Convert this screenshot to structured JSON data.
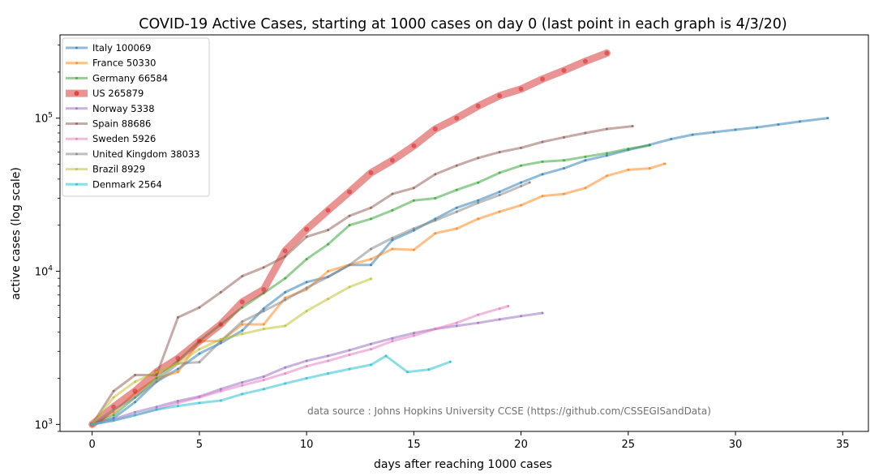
{
  "chart_data": {
    "type": "line",
    "title": "COVID-19 Active Cases, starting at 1000 cases on day 0 (last point in each graph is 4/3/20)",
    "xlabel": "days after reaching 1000 cases",
    "ylabel": "active cases (log scale)",
    "xlim": [
      -1.5,
      36.2
    ],
    "ylim": [
      900,
      350000
    ],
    "yscale": "log",
    "xticks": [
      0,
      5,
      10,
      15,
      20,
      25,
      30,
      35
    ],
    "xtick_labels": [
      "0",
      "5",
      "10",
      "15",
      "20",
      "25",
      "30",
      "35"
    ],
    "yticks": [
      1000,
      10000,
      100000
    ],
    "ytick_labels": [
      {
        "base": "10",
        "exp": "3"
      },
      {
        "base": "10",
        "exp": "4"
      },
      {
        "base": "10",
        "exp": "5"
      }
    ],
    "grid": false,
    "legend_position": "top-left",
    "annotation": "data source : Johns Hopkins University CCSE (https://github.com/CSSEGISandData)",
    "series": [
      {
        "name": "Italy 100069",
        "color": "#1f77b4",
        "width": 3,
        "marker": "dot",
        "x": [
          0,
          1,
          2,
          3,
          4,
          5,
          6,
          7,
          8,
          9,
          10,
          11,
          12,
          13,
          14,
          15,
          16,
          17,
          18,
          19,
          20,
          21,
          22,
          23,
          24,
          25,
          26,
          27,
          28,
          29,
          30,
          31,
          32,
          33,
          34.3
        ],
        "y": [
          1000,
          1100,
          1400,
          1900,
          2300,
          2900,
          3400,
          4100,
          5700,
          7300,
          8500,
          9200,
          11000,
          11000,
          16000,
          18500,
          22000,
          26000,
          29000,
          33000,
          38000,
          43000,
          47000,
          53000,
          57000,
          62000,
          67000,
          73000,
          78000,
          81000,
          84000,
          87000,
          91000,
          95000,
          100069
        ]
      },
      {
        "name": "France 50330",
        "color": "#ff7f0e",
        "width": 3,
        "marker": "dot",
        "x": [
          0,
          1,
          2,
          3,
          4,
          5,
          6,
          7,
          8,
          9,
          10,
          11,
          12,
          13,
          14,
          15,
          16,
          17,
          18,
          19,
          20,
          21,
          22,
          23,
          24,
          25,
          26,
          26.7
        ],
        "y": [
          1000,
          1200,
          1600,
          2000,
          2200,
          3500,
          3500,
          4500,
          4500,
          6700,
          7600,
          10000,
          11000,
          12000,
          14000,
          13800,
          17700,
          19000,
          22000,
          24500,
          27000,
          31000,
          32000,
          35000,
          42000,
          46000,
          47000,
          50330
        ]
      },
      {
        "name": "Germany 66584",
        "color": "#2ca02c",
        "width": 3,
        "marker": "dot",
        "x": [
          0,
          1,
          2,
          3,
          4,
          5,
          6,
          7,
          8,
          9,
          10,
          11,
          12,
          13,
          14,
          15,
          16,
          17,
          18,
          19,
          20,
          21,
          22,
          23,
          24,
          25,
          26
        ],
        "y": [
          1000,
          1150,
          1500,
          2000,
          2600,
          3500,
          4500,
          5800,
          7200,
          9000,
          12000,
          15000,
          20000,
          22000,
          25000,
          29000,
          30000,
          34000,
          38000,
          44000,
          49000,
          52000,
          53000,
          56000,
          59000,
          63000,
          66584
        ]
      },
      {
        "name": "US 265879",
        "color": "#d62728",
        "width": 9,
        "marker": "circle",
        "x": [
          0,
          1,
          2,
          3,
          4,
          5,
          6,
          7,
          8,
          9,
          10,
          11,
          12,
          13,
          14,
          15,
          16,
          17,
          18,
          19,
          20,
          21,
          22,
          23,
          24
        ],
        "y": [
          1000,
          1300,
          1650,
          2200,
          2700,
          3500,
          4500,
          6300,
          7600,
          13600,
          18800,
          25000,
          33000,
          44000,
          53000,
          66000,
          85000,
          100000,
          120000,
          140000,
          155000,
          180000,
          205000,
          235000,
          265879
        ]
      },
      {
        "name": "Norway 5338",
        "color": "#9467bd",
        "width": 3,
        "marker": "dot",
        "x": [
          0,
          1,
          2,
          3,
          4,
          5,
          6,
          7,
          8,
          9,
          10,
          11,
          12,
          13,
          14,
          15,
          16,
          17,
          18,
          19,
          20,
          21
        ],
        "y": [
          1000,
          1080,
          1200,
          1300,
          1420,
          1520,
          1700,
          1880,
          2050,
          2350,
          2600,
          2800,
          3050,
          3350,
          3650,
          3950,
          4200,
          4400,
          4600,
          4850,
          5100,
          5338
        ]
      },
      {
        "name": "Spain 88686",
        "color": "#8c564b",
        "width": 3,
        "marker": "dot",
        "x": [
          0,
          1,
          2,
          3,
          4,
          5,
          6,
          7,
          8,
          9,
          10,
          11,
          12,
          13,
          14,
          15,
          16,
          17,
          18,
          19,
          20,
          21,
          22,
          23,
          24,
          25.2
        ],
        "y": [
          1000,
          1650,
          2100,
          2100,
          5000,
          5800,
          7300,
          9300,
          10600,
          12500,
          16800,
          18600,
          23000,
          26000,
          32000,
          35000,
          43000,
          49000,
          55000,
          60000,
          64000,
          70000,
          75000,
          80000,
          85000,
          88686
        ]
      },
      {
        "name": "Sweden 5926",
        "color": "#e377c2",
        "width": 3,
        "marker": "dot",
        "x": [
          0,
          1,
          2,
          3,
          4,
          5,
          6,
          7,
          8,
          9,
          10,
          11,
          12,
          13,
          14,
          15,
          16,
          17,
          18,
          19,
          19.4
        ],
        "y": [
          1000,
          1060,
          1150,
          1250,
          1380,
          1500,
          1650,
          1800,
          1950,
          2150,
          2400,
          2600,
          2850,
          3100,
          3500,
          3800,
          4200,
          4600,
          5200,
          5700,
          5926
        ]
      },
      {
        "name": "United Kingdom 38033",
        "color": "#7f7f7f",
        "width": 3,
        "marker": "dot",
        "x": [
          0,
          1,
          2,
          3,
          4,
          5,
          6,
          7,
          8,
          9,
          10,
          11,
          12,
          13,
          14,
          15,
          16,
          17,
          18,
          19,
          20,
          20.4
        ],
        "y": [
          1000,
          1250,
          1500,
          1900,
          2500,
          2550,
          3500,
          4700,
          5500,
          6500,
          7800,
          9200,
          11000,
          14000,
          16500,
          19000,
          21500,
          24500,
          28000,
          31500,
          36000,
          38033
        ]
      },
      {
        "name": "Brazil 8929",
        "color": "#bcbd22",
        "width": 3,
        "marker": "dot",
        "x": [
          0,
          1,
          2,
          3,
          4,
          5,
          6,
          7,
          8,
          9,
          10,
          11,
          12,
          13
        ],
        "y": [
          1000,
          1500,
          1900,
          2200,
          2500,
          3100,
          3600,
          3900,
          4200,
          4400,
          5500,
          6600,
          7900,
          8929
        ]
      },
      {
        "name": "Denmark 2564",
        "color": "#17becf",
        "width": 3,
        "marker": "dot",
        "x": [
          0,
          1,
          2,
          3,
          4,
          5,
          6,
          7,
          8,
          9,
          10,
          11,
          12,
          13,
          13.7,
          14.7,
          15.7,
          16.7
        ],
        "y": [
          1000,
          1060,
          1150,
          1250,
          1320,
          1380,
          1430,
          1580,
          1700,
          1850,
          2000,
          2150,
          2300,
          2450,
          2800,
          2200,
          2280,
          2564
        ]
      }
    ]
  }
}
